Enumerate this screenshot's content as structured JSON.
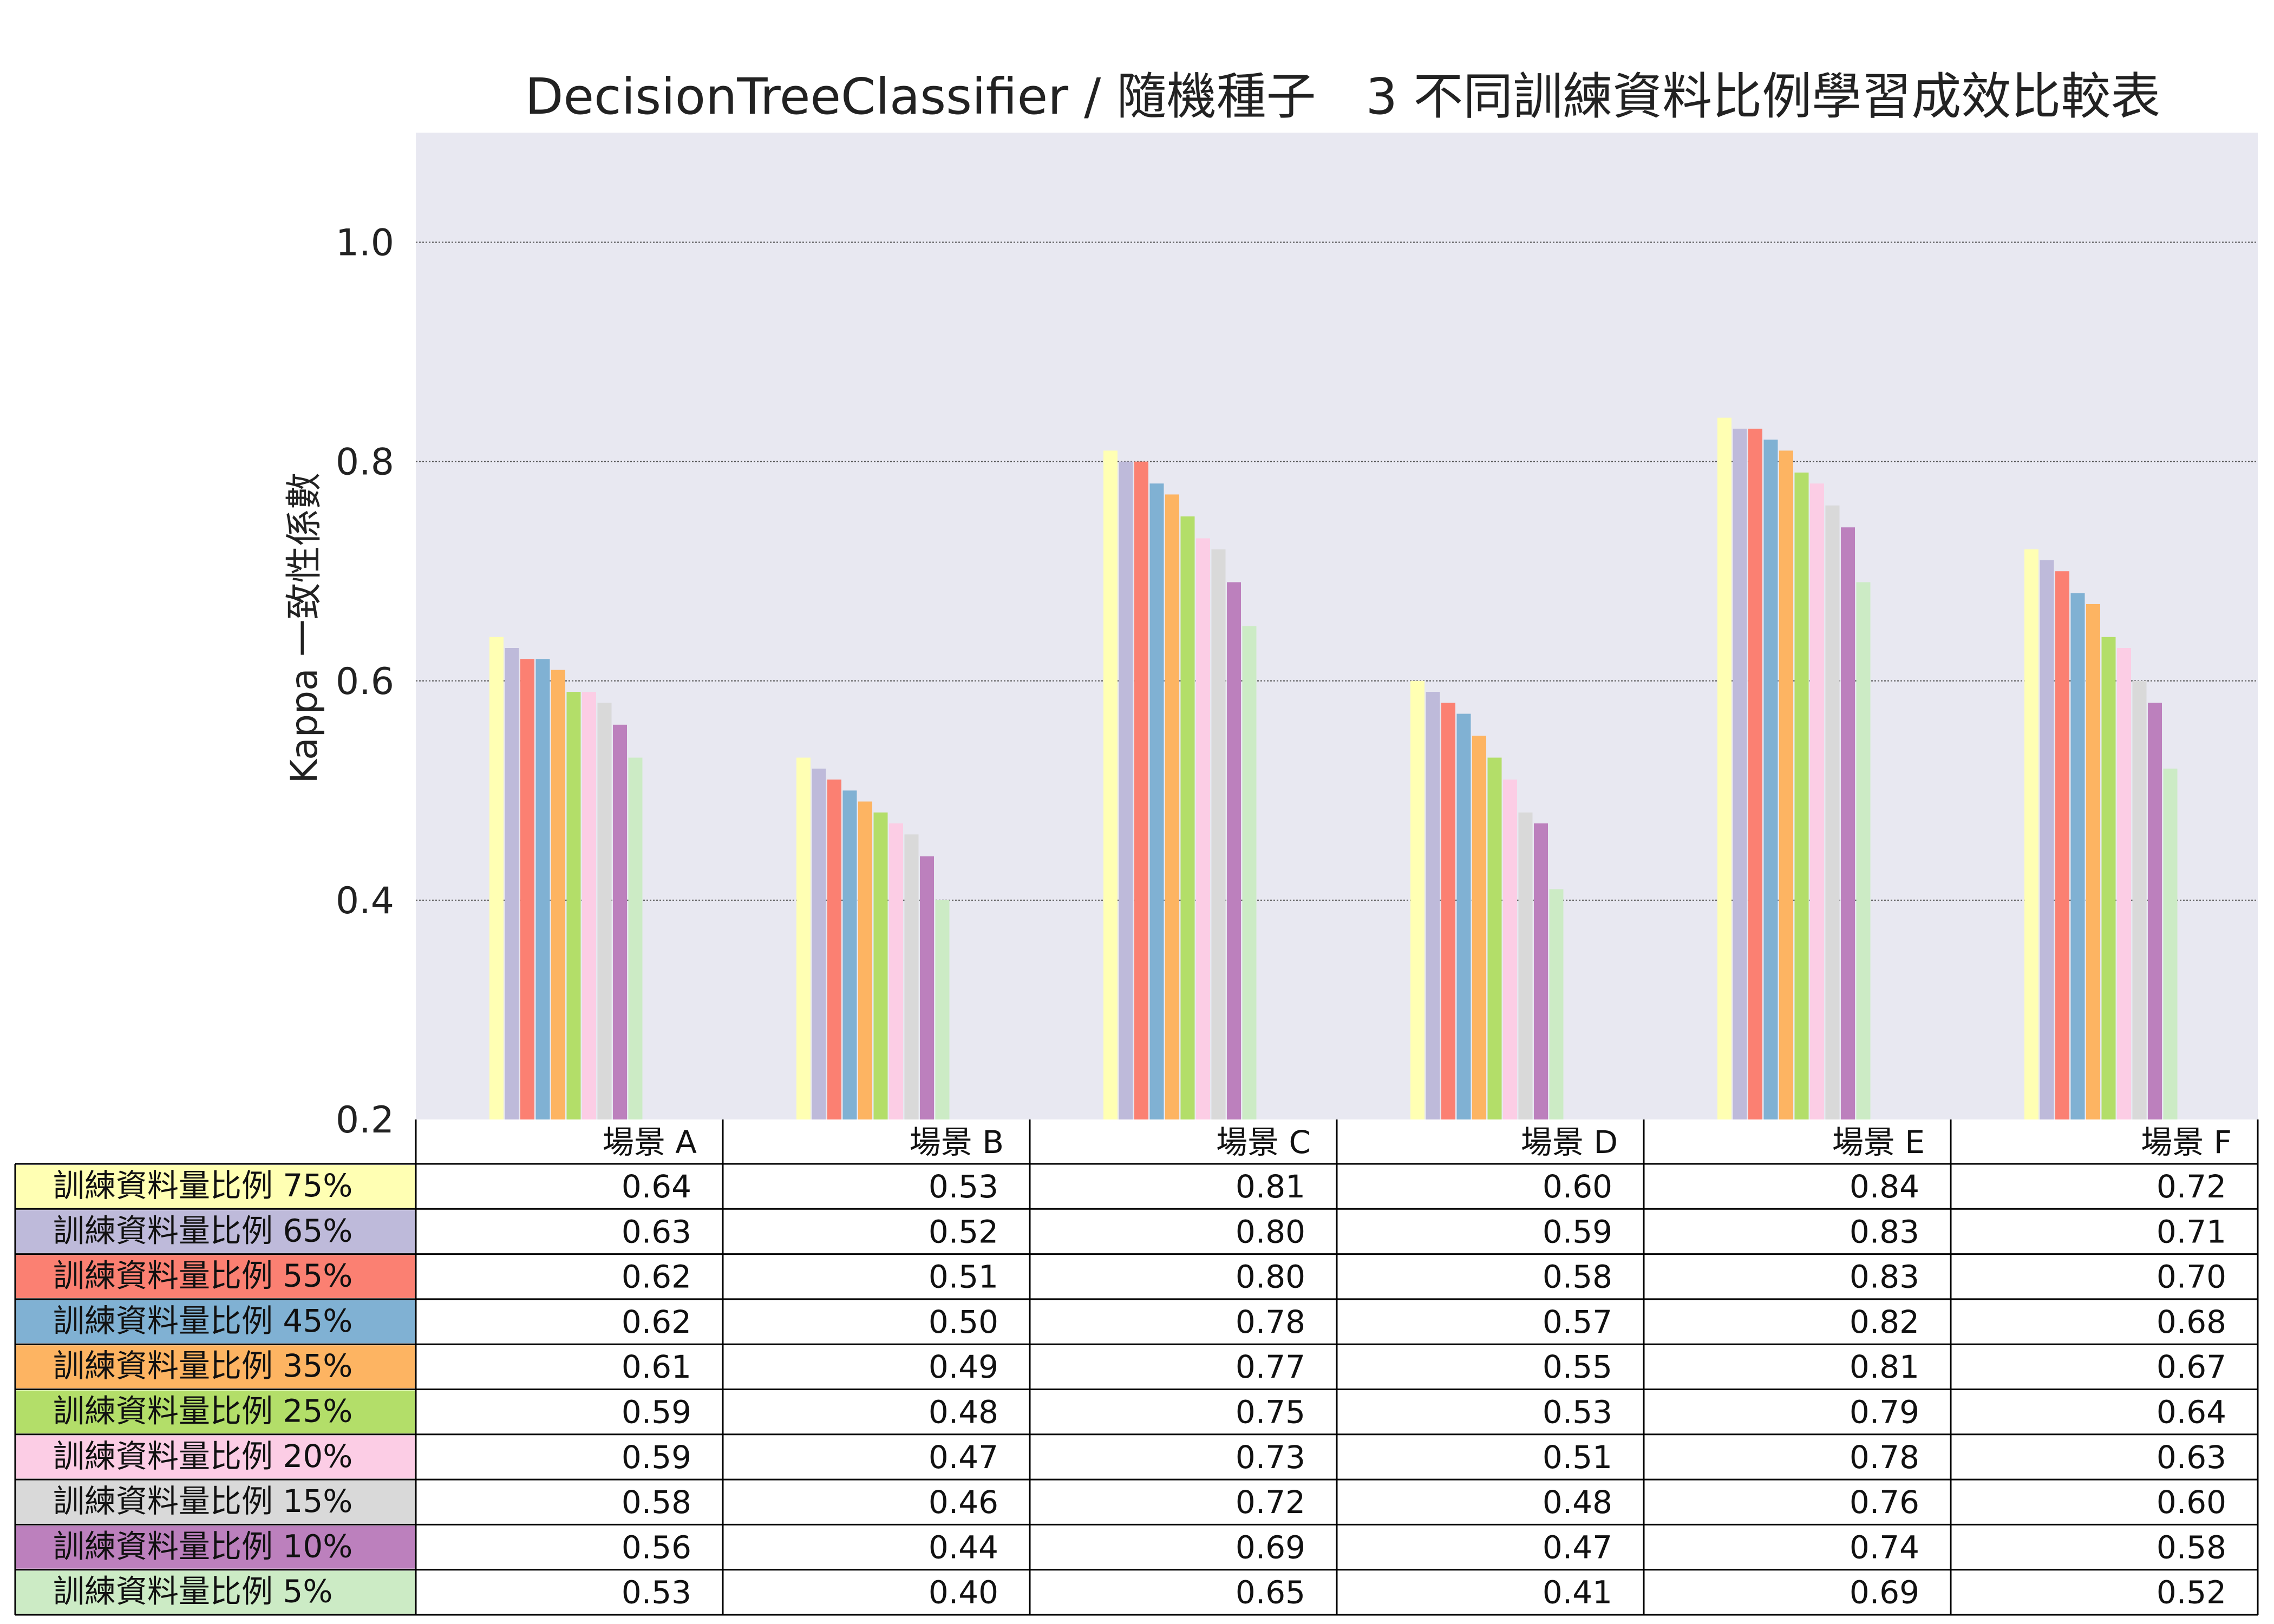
{
  "chart_data": {
    "type": "bar",
    "title": "DecisionTreeClassifier / 隨機種子　3 不同訓練資料比例學習成效比較表",
    "xlabel": "",
    "ylabel": "Kappa 一致性係數",
    "ylim": [
      0.2,
      1.1
    ],
    "yticks": [
      "0.2",
      "0.4",
      "0.6",
      "0.8",
      "1.0"
    ],
    "grid": true,
    "legend": "table-left",
    "categories": [
      "場景 A",
      "場景 B",
      "場景 C",
      "場景 D",
      "場景 E",
      "場景 F"
    ],
    "series": [
      {
        "name": "訓練資料量比例 75%",
        "color": "#ffffb3",
        "values": [
          0.64,
          0.53,
          0.81,
          0.6,
          0.84,
          0.72
        ],
        "labels": [
          "0.64",
          "0.53",
          "0.81",
          "0.60",
          "0.84",
          "0.72"
        ]
      },
      {
        "name": "訓練資料量比例 65%",
        "color": "#bebada",
        "values": [
          0.63,
          0.52,
          0.8,
          0.59,
          0.83,
          0.71
        ],
        "labels": [
          "0.63",
          "0.52",
          "0.80",
          "0.59",
          "0.83",
          "0.71"
        ]
      },
      {
        "name": "訓練資料量比例 55%",
        "color": "#fb8072",
        "values": [
          0.62,
          0.51,
          0.8,
          0.58,
          0.83,
          0.7
        ],
        "labels": [
          "0.62",
          "0.51",
          "0.80",
          "0.58",
          "0.83",
          "0.70"
        ]
      },
      {
        "name": "訓練資料量比例 45%",
        "color": "#80b1d3",
        "values": [
          0.62,
          0.5,
          0.78,
          0.57,
          0.82,
          0.68
        ],
        "labels": [
          "0.62",
          "0.50",
          "0.78",
          "0.57",
          "0.82",
          "0.68"
        ]
      },
      {
        "name": "訓練資料量比例 35%",
        "color": "#fdb462",
        "values": [
          0.61,
          0.49,
          0.77,
          0.55,
          0.81,
          0.67
        ],
        "labels": [
          "0.61",
          "0.49",
          "0.77",
          "0.55",
          "0.81",
          "0.67"
        ]
      },
      {
        "name": "訓練資料量比例 25%",
        "color": "#b3de69",
        "values": [
          0.59,
          0.48,
          0.75,
          0.53,
          0.79,
          0.64
        ],
        "labels": [
          "0.59",
          "0.48",
          "0.75",
          "0.53",
          "0.79",
          "0.64"
        ]
      },
      {
        "name": "訓練資料量比例 20%",
        "color": "#fccde5",
        "values": [
          0.59,
          0.47,
          0.73,
          0.51,
          0.78,
          0.63
        ],
        "labels": [
          "0.59",
          "0.47",
          "0.73",
          "0.51",
          "0.78",
          "0.63"
        ]
      },
      {
        "name": "訓練資料量比例 15%",
        "color": "#d9d9d9",
        "values": [
          0.58,
          0.46,
          0.72,
          0.48,
          0.76,
          0.6
        ],
        "labels": [
          "0.58",
          "0.46",
          "0.72",
          "0.48",
          "0.76",
          "0.60"
        ]
      },
      {
        "name": "訓練資料量比例 10%",
        "color": "#bc80bd",
        "values": [
          0.56,
          0.44,
          0.69,
          0.47,
          0.74,
          0.58
        ],
        "labels": [
          "0.56",
          "0.44",
          "0.69",
          "0.47",
          "0.74",
          "0.58"
        ]
      },
      {
        "name": "訓練資料量比例 5%",
        "color": "#ccebc5",
        "values": [
          0.53,
          0.4,
          0.65,
          0.41,
          0.69,
          0.52
        ],
        "labels": [
          "0.53",
          "0.40",
          "0.65",
          "0.41",
          "0.69",
          "0.52"
        ]
      }
    ]
  },
  "style": {
    "plot_background": "#e8e8f1",
    "grid_color": "#555555",
    "table_border": "#000000"
  }
}
